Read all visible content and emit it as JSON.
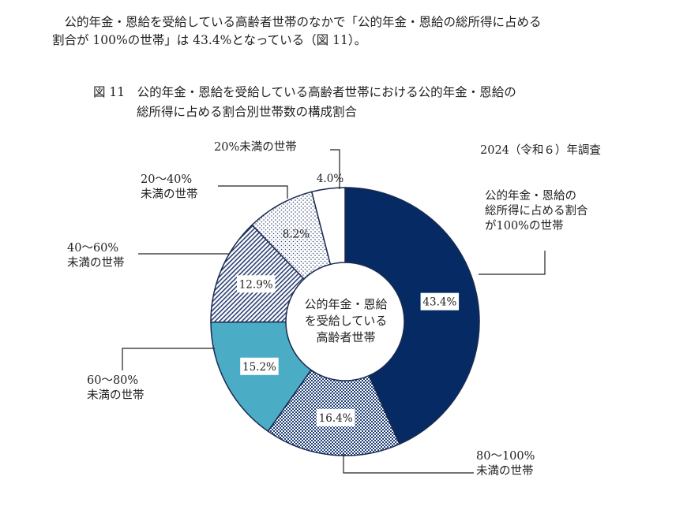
{
  "intro": {
    "line1": "　公的年金・恩給を受給している高齢者世帯のなかで「公的年金・恩給の総所得に占める",
    "line2": "割合が 100%の世帯」は 43.4%となっている（図 11）。"
  },
  "figure": {
    "title_line1": "図 11　公的年金・恩給を受給している高齢者世帯における公的年金・恩給の",
    "title_line2": "総所得に占める割合別世帯数の構成割合",
    "survey_note": "2024（令和６）年調査"
  },
  "chart_data": {
    "type": "pie",
    "donut": true,
    "center_label": [
      "公的年金・恩給",
      "を受給している",
      "高齢者世帯"
    ],
    "unit": "%",
    "slices": [
      {
        "label": [
          "公的年金・恩給の",
          "総所得に占める割合",
          "が100%の世帯"
        ],
        "value": 43.4,
        "value_label": "43.4%",
        "color": "#062a63",
        "pattern": "solid"
      },
      {
        "label": [
          "80～100%",
          "未満の世帯"
        ],
        "value": 16.4,
        "value_label": "16.4%",
        "color": "#1f3f78",
        "pattern": "checker"
      },
      {
        "label": [
          "60～80%",
          "未満の世帯"
        ],
        "value": 15.2,
        "value_label": "15.2%",
        "color": "#4bacc6",
        "pattern": "solid"
      },
      {
        "label": [
          "40～60%",
          "未満の世帯"
        ],
        "value": 12.9,
        "value_label": "12.9%",
        "color": "#2b3f73",
        "pattern": "diagonal-hatch"
      },
      {
        "label": [
          "20～40%",
          "未満の世帯"
        ],
        "value": 8.2,
        "value_label": "8.2%",
        "color": "#3a4a7a",
        "pattern": "dots"
      },
      {
        "label": [
          "20%未満の世帯"
        ],
        "value": 4.0,
        "value_label": "4.0%",
        "color": "#ffffff",
        "pattern": "solid"
      }
    ]
  }
}
